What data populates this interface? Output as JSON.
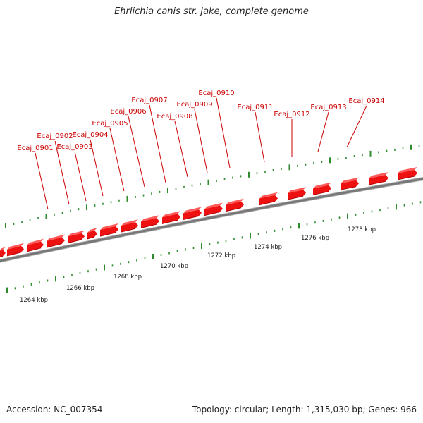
{
  "title": "Ehrlichia canis str. Jake, complete genome",
  "footer": {
    "accession": "Accession: NC_007354",
    "summary": "Topology: circular; Length: 1,315,030 bp; Genes: 966"
  },
  "gene_labels": [
    "Ecaj_0901",
    "Ecaj_0902",
    "Ecaj_0903",
    "Ecaj_0904",
    "Ecaj_0905",
    "Ecaj_0906",
    "Ecaj_0907",
    "Ecaj_0908",
    "Ecaj_0909",
    "Ecaj_0910",
    "Ecaj_0911",
    "Ecaj_0912",
    "Ecaj_0913",
    "Ecaj_0914"
  ],
  "kbp_labels": [
    "1264 kbp",
    "1266 kbp",
    "1268 kbp",
    "1270 kbp",
    "1272 kbp",
    "1274 kbp",
    "1276 kbp",
    "1278 kbp"
  ],
  "colors": {
    "gene": "#ee1111",
    "gene_light": "#ff5a5a",
    "gene_dark": "#b00000",
    "label": "#cc0000",
    "tick": "#2e8b2e",
    "backbone": "#777777",
    "backbone_shadow": "#aaaaaa"
  }
}
